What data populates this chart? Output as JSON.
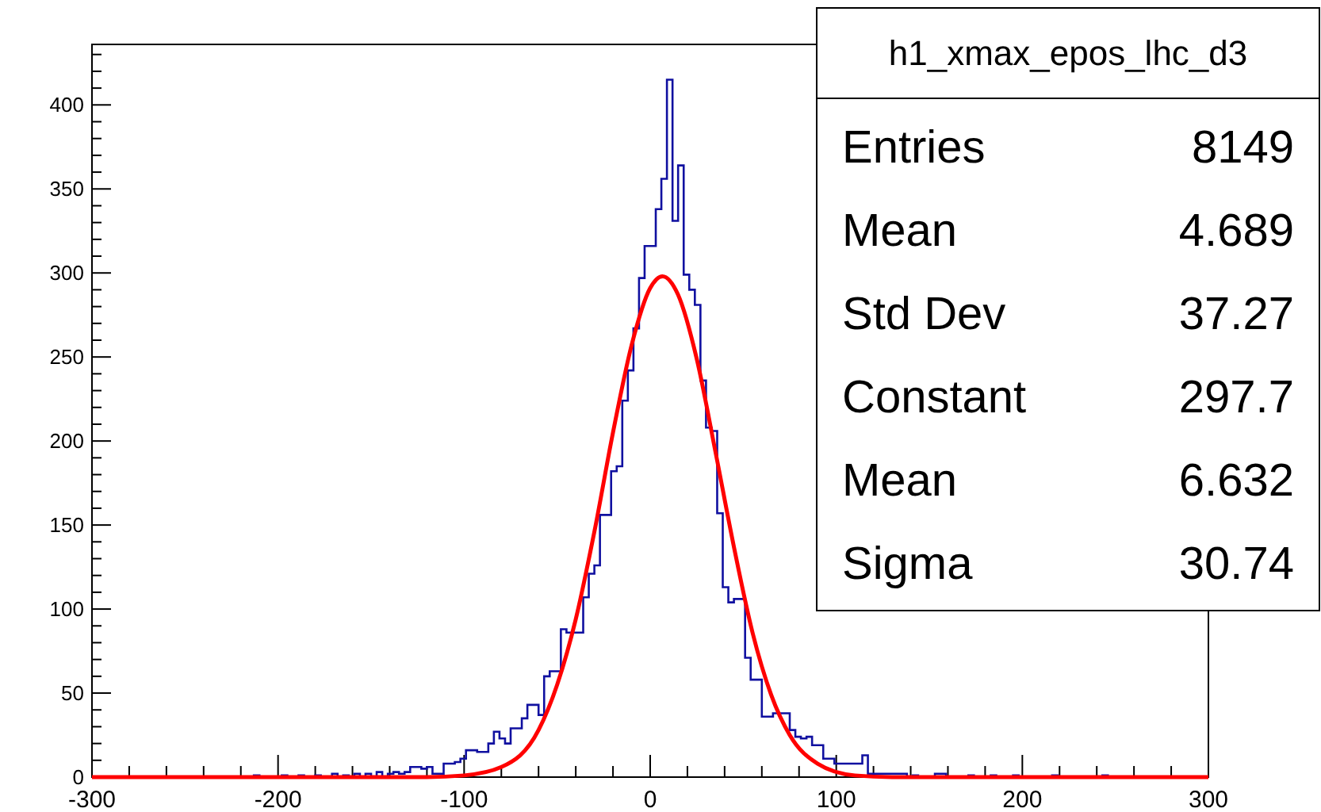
{
  "chart_data": {
    "type": "histogram",
    "title": "h1_xmax_epos_lhc_d3",
    "annotations": [
      "Entries 8149",
      "Mean 4.689",
      "Std Dev 37.27",
      "Constant 297.7",
      "Mean 6.632",
      "Sigma 30.74"
    ],
    "xlim": [
      -300,
      300
    ],
    "xticks": [
      -300,
      {
        "value": -280,
        "label": null
      },
      {
        "value": -260,
        "label": null
      },
      {
        "value": -240,
        "label": null
      },
      {
        "value": -220,
        "label": null
      },
      -200,
      {
        "value": -180,
        "label": null
      },
      {
        "value": -160,
        "label": null
      },
      {
        "value": -140,
        "label": null
      },
      {
        "value": -120,
        "label": null
      },
      -100,
      {
        "value": -80,
        "label": null
      },
      {
        "value": -60,
        "label": null
      },
      {
        "value": -40,
        "label": null
      },
      {
        "value": -20,
        "label": null
      },
      0,
      {
        "value": 20,
        "label": null
      },
      {
        "value": 40,
        "label": null
      },
      {
        "value": 60,
        "label": null
      },
      {
        "value": 80,
        "label": null
      },
      100,
      {
        "value": 120,
        "label": null
      },
      {
        "value": 140,
        "label": null
      },
      {
        "value": 160,
        "label": null
      },
      {
        "value": 180,
        "label": null
      },
      200,
      {
        "value": 220,
        "label": null
      },
      {
        "value": 240,
        "label": null
      },
      {
        "value": 260,
        "label": null
      },
      {
        "value": 280,
        "label": null
      },
      300
    ],
    "ylim": [
      0,
      436
    ],
    "yticks": [
      0,
      {
        "value": 10,
        "label": null
      },
      {
        "value": 20,
        "label": null
      },
      {
        "value": 30,
        "label": null
      },
      {
        "value": 40,
        "label": null
      },
      50,
      {
        "value": 60,
        "label": null
      },
      {
        "value": 70,
        "label": null
      },
      {
        "value": 80,
        "label": null
      },
      {
        "value": 90,
        "label": null
      },
      100,
      {
        "value": 110,
        "label": null
      },
      {
        "value": 120,
        "label": null
      },
      {
        "value": 130,
        "label": null
      },
      {
        "value": 140,
        "label": null
      },
      150,
      {
        "value": 160,
        "label": null
      },
      {
        "value": 170,
        "label": null
      },
      {
        "value": 180,
        "label": null
      },
      {
        "value": 190,
        "label": null
      },
      200,
      {
        "value": 210,
        "label": null
      },
      {
        "value": 220,
        "label": null
      },
      {
        "value": 230,
        "label": null
      },
      {
        "value": 240,
        "label": null
      },
      250,
      {
        "value": 260,
        "label": null
      },
      {
        "value": 270,
        "label": null
      },
      {
        "value": 280,
        "label": null
      },
      {
        "value": 290,
        "label": null
      },
      300,
      {
        "value": 310,
        "label": null
      },
      {
        "value": 320,
        "label": null
      },
      {
        "value": 330,
        "label": null
      },
      {
        "value": 340,
        "label": null
      },
      350,
      {
        "value": 360,
        "label": null
      },
      {
        "value": 370,
        "label": null
      },
      {
        "value": 380,
        "label": null
      },
      {
        "value": 390,
        "label": null
      },
      400,
      {
        "value": 410,
        "label": null
      },
      {
        "value": 420,
        "label": null
      },
      {
        "value": 430,
        "label": null
      }
    ],
    "grid": false,
    "series": [
      {
        "color": "#1010a0",
        "bins": [
          -300,
          -297,
          -294,
          -291,
          -288,
          -285,
          -282,
          -279,
          -276,
          -273,
          -270,
          -267,
          -264,
          -261,
          -258,
          -255,
          -252,
          -249,
          -246,
          -243,
          -240,
          -237,
          -234,
          -231,
          -228,
          -225,
          -222,
          -219,
          -216,
          -213,
          -210,
          -207,
          -204,
          -201,
          -198,
          -195,
          -192,
          -189,
          -186,
          -183,
          -180,
          -177,
          -174,
          -171,
          -168,
          -165,
          -162,
          -159,
          -156,
          -153,
          -150,
          -147,
          -144,
          -141,
          -138,
          -135,
          -132,
          -129,
          -126,
          -123,
          -120,
          -117,
          -114,
          -111,
          -108,
          -105,
          -102,
          -99,
          -96,
          -93,
          -90,
          -87,
          -84,
          -81,
          -78,
          -75,
          -72,
          -69,
          -66,
          -63,
          -60,
          -57,
          -54,
          -51,
          -48,
          -45,
          -42,
          -39,
          -36,
          -33,
          -30,
          -27,
          -24,
          -21,
          -18,
          -15,
          -12,
          -9,
          -6,
          -3,
          0,
          3,
          6,
          9,
          12,
          15,
          18,
          21,
          24,
          27,
          30,
          33,
          36,
          39,
          42,
          45,
          48,
          51,
          54,
          57,
          60,
          63,
          66,
          69,
          72,
          75,
          78,
          81,
          84,
          87,
          90,
          93,
          96,
          99,
          102,
          105,
          108,
          111,
          114,
          117,
          120,
          123,
          126,
          129,
          132,
          135,
          138,
          141,
          144,
          147,
          150,
          153,
          156,
          159,
          162,
          165,
          168,
          171,
          174,
          177,
          180,
          183,
          186,
          189,
          192,
          195,
          198,
          201,
          204,
          207,
          210,
          213,
          216,
          219,
          222,
          225,
          228,
          231,
          234,
          237,
          240,
          243,
          246,
          249,
          252,
          255,
          258,
          261,
          264,
          267,
          270,
          273,
          276,
          279,
          282,
          285,
          288,
          291,
          294,
          297,
          300
        ],
        "values": [
          0,
          0,
          0,
          0,
          0,
          0,
          0,
          0,
          0,
          0,
          0,
          0,
          0,
          0,
          0,
          0,
          0,
          0,
          0,
          0,
          0,
          0,
          0,
          0,
          0,
          0,
          0,
          0,
          0,
          1,
          0,
          0,
          0,
          0,
          1,
          0,
          0,
          1,
          0,
          0,
          1,
          0,
          0,
          2,
          0,
          1,
          0,
          2,
          0,
          2,
          0,
          3,
          0,
          2,
          3,
          2,
          3,
          6,
          6,
          5,
          6,
          2,
          2,
          8,
          8,
          9,
          11,
          16,
          16,
          15,
          15,
          20,
          27,
          23,
          20,
          29,
          29,
          35,
          43,
          43,
          37,
          60,
          63,
          63,
          88,
          86,
          86,
          86,
          107,
          121,
          126,
          156,
          156,
          182,
          185,
          224,
          242,
          267,
          297,
          316,
          316,
          338,
          356,
          415,
          331,
          364,
          299,
          290,
          281,
          236,
          208,
          206,
          157,
          113,
          104,
          106,
          106,
          71,
          58,
          58,
          36,
          36,
          38,
          38,
          38,
          28,
          24,
          23,
          24,
          19,
          19,
          11,
          11,
          8,
          8,
          8,
          8,
          8,
          13,
          2,
          2,
          2,
          2,
          2,
          2,
          2,
          0,
          1,
          0,
          0,
          0,
          2,
          2,
          0,
          0,
          0,
          0,
          1,
          0,
          0,
          0,
          1,
          0,
          0,
          0,
          1,
          0,
          0,
          0,
          0,
          0,
          0,
          1,
          0,
          0,
          0,
          0,
          0,
          0,
          0,
          0,
          1,
          0,
          0,
          0,
          0,
          0,
          0,
          0,
          0,
          0,
          0,
          0,
          0,
          0,
          0,
          0,
          0,
          0,
          0
        ]
      },
      {
        "type": "line",
        "color": "#ff0000",
        "x": [
          -300,
          -120,
          -100,
          -80,
          -60,
          -50,
          -40,
          -30,
          -20,
          -10,
          0,
          6.6,
          15,
          25,
          35,
          45,
          55,
          65,
          75,
          90,
          110,
          130,
          300
        ],
        "values": [
          0,
          0,
          1,
          6,
          28,
          55,
          94,
          146,
          205,
          257,
          291,
          298,
          287,
          249,
          194,
          137,
          86,
          49,
          25,
          8,
          1,
          0,
          0
        ]
      }
    ]
  }
}
